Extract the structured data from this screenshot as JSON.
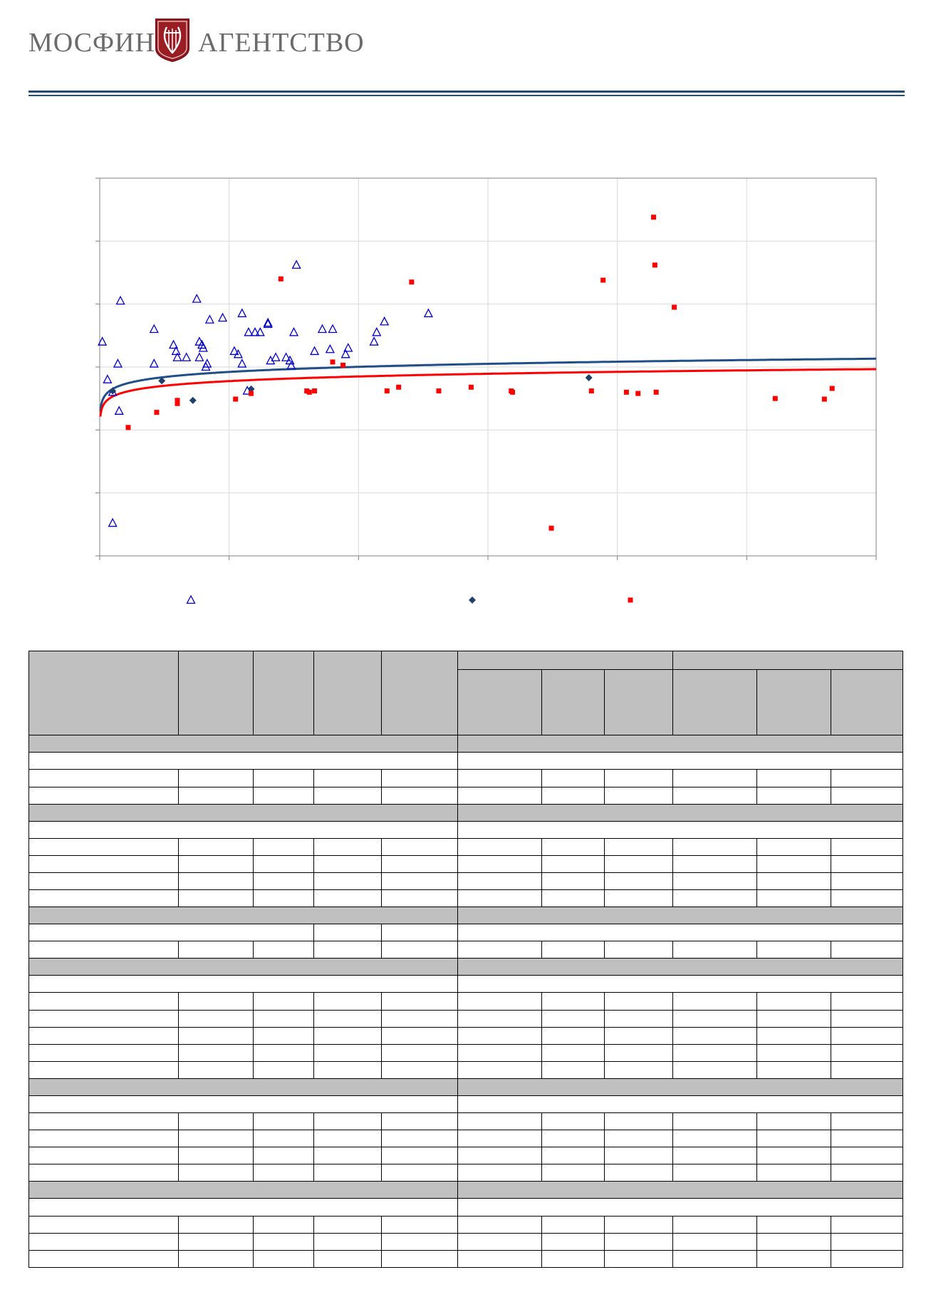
{
  "header": {
    "brand_left": "МОСФИН",
    "brand_right": "АГЕНТСТВО",
    "seal_icon": "lyre-crest-icon",
    "accent_color": "#1f4e79",
    "seal_color": "#9b1d24"
  },
  "chart_data": {
    "type": "scatter",
    "title": "",
    "xlabel": "",
    "ylabel": "",
    "xlim": [
      0,
      6
    ],
    "ylim": [
      0,
      6
    ],
    "grid": true,
    "legend_position": "bottom",
    "series": [
      {
        "marker": "triangle-open",
        "color": "#0000cc",
        "points": [
          [
            0.02,
            3.4
          ],
          [
            0.06,
            2.8
          ],
          [
            0.1,
            2.6
          ],
          [
            0.14,
            3.05
          ],
          [
            0.15,
            2.3
          ],
          [
            0.16,
            4.05
          ],
          [
            0.42,
            3.6
          ],
          [
            0.42,
            3.05
          ],
          [
            0.57,
            3.35
          ],
          [
            0.59,
            3.25
          ],
          [
            0.6,
            3.15
          ],
          [
            0.67,
            3.15
          ],
          [
            0.75,
            4.08
          ],
          [
            0.77,
            3.4
          ],
          [
            0.77,
            3.15
          ],
          [
            0.79,
            3.35
          ],
          [
            0.8,
            3.3
          ],
          [
            0.82,
            3.0
          ],
          [
            0.83,
            3.05
          ],
          [
            0.85,
            3.75
          ],
          [
            0.95,
            3.78
          ],
          [
            1.04,
            3.25
          ],
          [
            1.07,
            3.2
          ],
          [
            1.1,
            3.05
          ],
          [
            1.1,
            3.85
          ],
          [
            1.15,
            3.55
          ],
          [
            1.2,
            3.55
          ],
          [
            1.24,
            3.55
          ],
          [
            1.3,
            3.7
          ],
          [
            1.3,
            3.68
          ],
          [
            1.32,
            3.1
          ],
          [
            1.36,
            3.15
          ],
          [
            1.44,
            3.15
          ],
          [
            1.47,
            3.1
          ],
          [
            1.48,
            3.02
          ],
          [
            1.5,
            3.55
          ],
          [
            1.52,
            4.62
          ],
          [
            1.66,
            3.25
          ],
          [
            1.72,
            3.6
          ],
          [
            1.78,
            3.28
          ],
          [
            1.8,
            3.6
          ],
          [
            1.9,
            3.2
          ],
          [
            1.92,
            3.3
          ],
          [
            2.12,
            3.4
          ],
          [
            2.14,
            3.55
          ],
          [
            2.2,
            3.72
          ],
          [
            2.54,
            3.85
          ],
          [
            0.1,
            0.52
          ],
          [
            1.14,
            2.62
          ]
        ]
      },
      {
        "marker": "diamond",
        "color": "#1f3f6e",
        "points": [
          [
            0.1,
            2.62
          ],
          [
            0.48,
            2.78
          ],
          [
            0.72,
            2.47
          ],
          [
            1.17,
            2.65
          ],
          [
            3.78,
            2.83
          ]
        ]
      },
      {
        "marker": "square",
        "color": "#ff0000",
        "points": [
          [
            0.22,
            2.04
          ],
          [
            0.44,
            2.28
          ],
          [
            0.6,
            2.42
          ],
          [
            0.6,
            2.47
          ],
          [
            1.05,
            2.49
          ],
          [
            1.17,
            2.58
          ],
          [
            1.4,
            4.4
          ],
          [
            1.6,
            2.62
          ],
          [
            1.62,
            2.6
          ],
          [
            1.66,
            2.62
          ],
          [
            1.8,
            3.08
          ],
          [
            1.88,
            3.03
          ],
          [
            2.22,
            2.62
          ],
          [
            2.31,
            2.68
          ],
          [
            2.41,
            4.35
          ],
          [
            2.62,
            2.62
          ],
          [
            2.87,
            2.68
          ],
          [
            3.18,
            2.62
          ],
          [
            3.19,
            2.6
          ],
          [
            3.49,
            0.44
          ],
          [
            3.8,
            2.62
          ],
          [
            3.89,
            4.38
          ],
          [
            4.07,
            2.6
          ],
          [
            4.16,
            2.58
          ],
          [
            4.28,
            5.38
          ],
          [
            4.29,
            4.62
          ],
          [
            4.3,
            2.6
          ],
          [
            4.44,
            3.95
          ],
          [
            5.22,
            2.5
          ],
          [
            5.6,
            2.49
          ],
          [
            5.66,
            2.66
          ]
        ]
      }
    ],
    "trendlines": [
      {
        "type": "logarithmic",
        "color": "#1f4e89",
        "a": 2.922,
        "b": 0.1172
      },
      {
        "type": "logarithmic",
        "color": "#ff0000",
        "a": 2.776,
        "b": 0.1063
      }
    ]
  },
  "table": {
    "col_widths": [
      210,
      105,
      85,
      95,
      107,
      118,
      88,
      96,
      118,
      104,
      101
    ],
    "section_count": 6,
    "row_layout": [
      {
        "kind": "sec",
        "colspans": [
          5,
          6
        ]
      },
      {
        "kind": "sub",
        "colspans": [
          5,
          6
        ]
      },
      {
        "kind": "row",
        "colspans": [
          1,
          1,
          1,
          1,
          1,
          1,
          1,
          1,
          1,
          1,
          1
        ]
      },
      {
        "kind": "row",
        "colspans": [
          1,
          1,
          1,
          1,
          1,
          1,
          1,
          1,
          1,
          1,
          1
        ]
      },
      {
        "kind": "sec",
        "colspans": [
          5,
          6
        ]
      },
      {
        "kind": "sub",
        "colspans": [
          5,
          6
        ]
      },
      {
        "kind": "row",
        "colspans": [
          1,
          1,
          1,
          1,
          1,
          1,
          1,
          1,
          1,
          1,
          1
        ]
      },
      {
        "kind": "row",
        "colspans": [
          1,
          1,
          1,
          1,
          1,
          1,
          1,
          1,
          1,
          1,
          1
        ]
      },
      {
        "kind": "row",
        "colspans": [
          1,
          1,
          1,
          1,
          1,
          1,
          1,
          1,
          1,
          1,
          1
        ]
      },
      {
        "kind": "row",
        "colspans": [
          1,
          1,
          1,
          1,
          1,
          1,
          1,
          1,
          1,
          1,
          1
        ]
      },
      {
        "kind": "sec",
        "colspans": [
          5,
          6
        ]
      },
      {
        "kind": "sub",
        "colspans": [
          3,
          1,
          1,
          6
        ]
      },
      {
        "kind": "row",
        "colspans": [
          1,
          1,
          1,
          1,
          1,
          1,
          1,
          1,
          1,
          1,
          1
        ]
      },
      {
        "kind": "sec",
        "colspans": [
          5,
          6
        ]
      },
      {
        "kind": "sub",
        "colspans": [
          5,
          6
        ]
      },
      {
        "kind": "row",
        "colspans": [
          1,
          1,
          1,
          1,
          1,
          1,
          1,
          1,
          1,
          1,
          1
        ]
      },
      {
        "kind": "row",
        "colspans": [
          1,
          1,
          1,
          1,
          1,
          1,
          1,
          1,
          1,
          1,
          1
        ]
      },
      {
        "kind": "row",
        "colspans": [
          1,
          1,
          1,
          1,
          1,
          1,
          1,
          1,
          1,
          1,
          1
        ]
      },
      {
        "kind": "row",
        "colspans": [
          1,
          1,
          1,
          1,
          1,
          1,
          1,
          1,
          1,
          1,
          1
        ]
      },
      {
        "kind": "row",
        "colspans": [
          1,
          1,
          1,
          1,
          1,
          1,
          1,
          1,
          1,
          1,
          1
        ]
      },
      {
        "kind": "sec",
        "colspans": [
          5,
          6
        ]
      },
      {
        "kind": "sub",
        "colspans": [
          5,
          6
        ]
      },
      {
        "kind": "row",
        "colspans": [
          1,
          1,
          1,
          1,
          1,
          1,
          1,
          1,
          1,
          1,
          1
        ]
      },
      {
        "kind": "row",
        "colspans": [
          1,
          1,
          1,
          1,
          1,
          1,
          1,
          1,
          1,
          1,
          1
        ]
      },
      {
        "kind": "row",
        "colspans": [
          1,
          1,
          1,
          1,
          1,
          1,
          1,
          1,
          1,
          1,
          1
        ]
      },
      {
        "kind": "row",
        "colspans": [
          1,
          1,
          1,
          1,
          1,
          1,
          1,
          1,
          1,
          1,
          1
        ]
      },
      {
        "kind": "sec",
        "colspans": [
          5,
          6
        ]
      },
      {
        "kind": "sub",
        "colspans": [
          5,
          6
        ]
      },
      {
        "kind": "row",
        "colspans": [
          1,
          1,
          1,
          1,
          1,
          1,
          1,
          1,
          1,
          1,
          1
        ]
      },
      {
        "kind": "row",
        "colspans": [
          1,
          1,
          1,
          1,
          1,
          1,
          1,
          1,
          1,
          1,
          1
        ]
      },
      {
        "kind": "row",
        "colspans": [
          1,
          1,
          1,
          1,
          1,
          1,
          1,
          1,
          1,
          1,
          1
        ]
      }
    ]
  }
}
